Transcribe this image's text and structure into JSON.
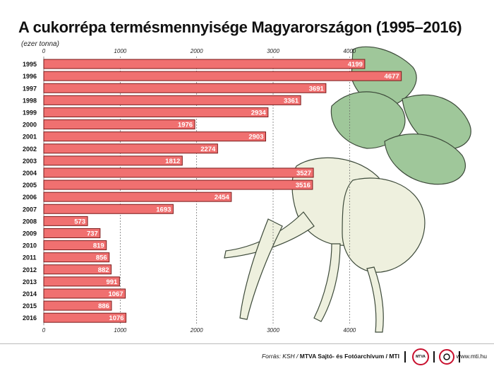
{
  "title": "A cukorrépa termésmennyisége Magyarországon (1995–2016)",
  "unit_label": "(ezer tonna)",
  "chart_data": {
    "type": "bar",
    "orientation": "horizontal",
    "categories": [
      "1995",
      "1996",
      "1997",
      "1998",
      "1999",
      "2000",
      "2001",
      "2002",
      "2003",
      "2004",
      "2005",
      "2006",
      "2007",
      "2008",
      "2009",
      "2010",
      "2011",
      "2012",
      "2013",
      "2014",
      "2015",
      "2016"
    ],
    "values": [
      4199,
      4677,
      3691,
      3361,
      2934,
      1976,
      2903,
      2274,
      1812,
      3527,
      3516,
      2454,
      1693,
      573,
      737,
      819,
      856,
      882,
      991,
      1067,
      886,
      1076
    ],
    "x_ticks": [
      "0",
      "1000",
      "2000",
      "3000",
      "4000"
    ],
    "xlim": [
      0,
      4800
    ],
    "grid": true,
    "bar_color": "#f07070",
    "bar_edge_color": "#7a1a1a",
    "value_label_color": "#ffffff"
  },
  "footer": {
    "source_lead": "Forrás: KSH / ",
    "source_org": "MTVA Sajtó- és Fotóarchívum / MTI",
    "logo1_text": "MTVA",
    "website": "www.mti.hu"
  }
}
